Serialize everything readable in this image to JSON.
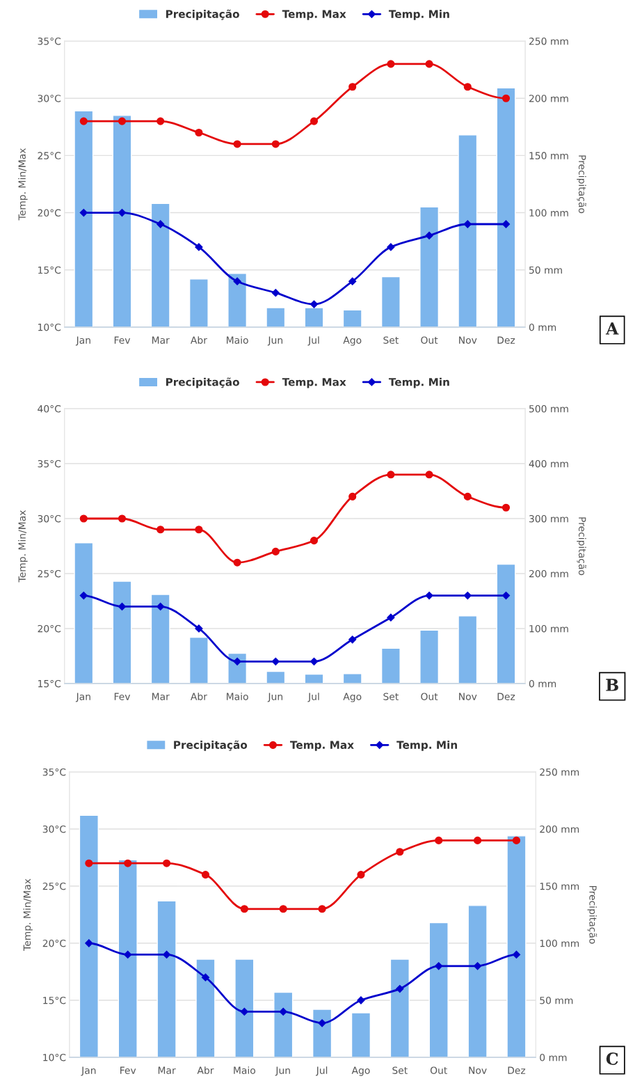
{
  "chart_data": [
    {
      "type": "bar",
      "categories": [
        "Jan",
        "Fev",
        "Mar",
        "Abr",
        "Maio",
        "Jun",
        "Jul",
        "Ago",
        "Set",
        "Out",
        "Nov",
        "Dez"
      ],
      "ylabel": "Temp. Min/Max",
      "y2label": "Precipitação",
      "ylim": [
        10,
        35
      ],
      "yticks": [
        {
          "value": 10,
          "label": "10°C"
        },
        {
          "value": 15,
          "label": "15°C"
        },
        {
          "value": 20,
          "label": "20°C"
        },
        {
          "value": 25,
          "label": "25°C"
        },
        {
          "value": 30,
          "label": "30°C"
        },
        {
          "value": 35,
          "label": "35°C"
        }
      ],
      "y2lim": [
        0,
        250
      ],
      "y2ticks": [
        {
          "value": 0,
          "label": "0 mm"
        },
        {
          "value": 50,
          "label": "50 mm"
        },
        {
          "value": 100,
          "label": "100 mm"
        },
        {
          "value": 150,
          "label": "150 mm"
        },
        {
          "value": 200,
          "label": "200 mm"
        },
        {
          "value": 250,
          "label": "250 mm"
        }
      ],
      "grid": "y",
      "legend": "top",
      "annotations": [
        "A"
      ],
      "series": [
        {
          "name": "Precipitação",
          "axis": "y2",
          "color": "#7cb5ec",
          "values": [
            189,
            185,
            108,
            42,
            47,
            17,
            17,
            15,
            44,
            105,
            168,
            209
          ]
        },
        {
          "name": "Temp. Max",
          "type": "line",
          "color": "#e4080a",
          "marker": "circle",
          "values": [
            28,
            28,
            28,
            27,
            26,
            26,
            28,
            31,
            33,
            33,
            31,
            30
          ]
        },
        {
          "name": "Temp. Min",
          "type": "line",
          "color": "#0000cc",
          "marker": "diamond",
          "values": [
            20,
            20,
            19,
            17,
            14,
            13,
            12,
            14,
            17,
            18,
            19,
            19
          ]
        }
      ]
    },
    {
      "type": "bar",
      "categories": [
        "Jan",
        "Fev",
        "Mar",
        "Abr",
        "Maio",
        "Jun",
        "Jul",
        "Ago",
        "Set",
        "Out",
        "Nov",
        "Dez"
      ],
      "ylabel": "Temp. Min/Max",
      "y2label": "Precipitação",
      "ylim": [
        15,
        40
      ],
      "yticks": [
        {
          "value": 15,
          "label": "15°C"
        },
        {
          "value": 20,
          "label": "20°C"
        },
        {
          "value": 25,
          "label": "25°C"
        },
        {
          "value": 30,
          "label": "30°C"
        },
        {
          "value": 35,
          "label": "35°C"
        },
        {
          "value": 40,
          "label": "40°C"
        }
      ],
      "y2lim": [
        0,
        500
      ],
      "y2ticks": [
        {
          "value": 0,
          "label": "0 mm"
        },
        {
          "value": 100,
          "label": "100 mm"
        },
        {
          "value": 200,
          "label": "200 mm"
        },
        {
          "value": 300,
          "label": "300 mm"
        },
        {
          "value": 400,
          "label": "400 mm"
        },
        {
          "value": 500,
          "label": "500 mm"
        }
      ],
      "grid": "y",
      "legend": "top",
      "annotations": [
        "B"
      ],
      "series": [
        {
          "name": "Precipitação",
          "axis": "y2",
          "color": "#7cb5ec",
          "values": [
            256,
            186,
            162,
            84,
            55,
            22,
            17,
            18,
            64,
            97,
            123,
            217
          ]
        },
        {
          "name": "Temp. Max",
          "type": "line",
          "color": "#e4080a",
          "marker": "circle",
          "values": [
            30,
            30,
            29,
            29,
            26,
            27,
            28,
            32,
            34,
            34,
            32,
            31
          ]
        },
        {
          "name": "Temp. Min",
          "type": "line",
          "color": "#0000cc",
          "marker": "diamond",
          "values": [
            23,
            22,
            22,
            20,
            17,
            17,
            17,
            19,
            21,
            23,
            23,
            23
          ]
        }
      ]
    },
    {
      "type": "bar",
      "categories": [
        "Jan",
        "Fev",
        "Mar",
        "Abr",
        "Maio",
        "Jun",
        "Jul",
        "Ago",
        "Set",
        "Out",
        "Nov",
        "Dez"
      ],
      "ylabel": "Temp. Min/Max",
      "y2label": "Precipitação",
      "ylim": [
        10,
        35
      ],
      "yticks": [
        {
          "value": 10,
          "label": "10°C"
        },
        {
          "value": 15,
          "label": "15°C"
        },
        {
          "value": 20,
          "label": "20°C"
        },
        {
          "value": 25,
          "label": "25°C"
        },
        {
          "value": 30,
          "label": "30°C"
        },
        {
          "value": 35,
          "label": "35°C"
        }
      ],
      "y2lim": [
        0,
        250
      ],
      "y2ticks": [
        {
          "value": 0,
          "label": "0 mm"
        },
        {
          "value": 50,
          "label": "50 mm"
        },
        {
          "value": 100,
          "label": "100 mm"
        },
        {
          "value": 150,
          "label": "150 mm"
        },
        {
          "value": 200,
          "label": "200 mm"
        },
        {
          "value": 250,
          "label": "250 mm"
        }
      ],
      "grid": "y",
      "legend": "top",
      "annotations": [
        "C"
      ],
      "series": [
        {
          "name": "Precipitação",
          "axis": "y2",
          "color": "#7cb5ec",
          "values": [
            212,
            173,
            137,
            86,
            86,
            57,
            42,
            39,
            86,
            118,
            133,
            194
          ]
        },
        {
          "name": "Temp. Max",
          "type": "line",
          "color": "#e4080a",
          "marker": "circle",
          "values": [
            27,
            27,
            27,
            26,
            23,
            23,
            23,
            26,
            28,
            29,
            29,
            29
          ]
        },
        {
          "name": "Temp. Min",
          "type": "line",
          "color": "#0000cc",
          "marker": "diamond",
          "values": [
            20,
            19,
            19,
            17,
            14,
            14,
            13,
            15,
            16,
            18,
            18,
            19
          ]
        }
      ]
    }
  ]
}
